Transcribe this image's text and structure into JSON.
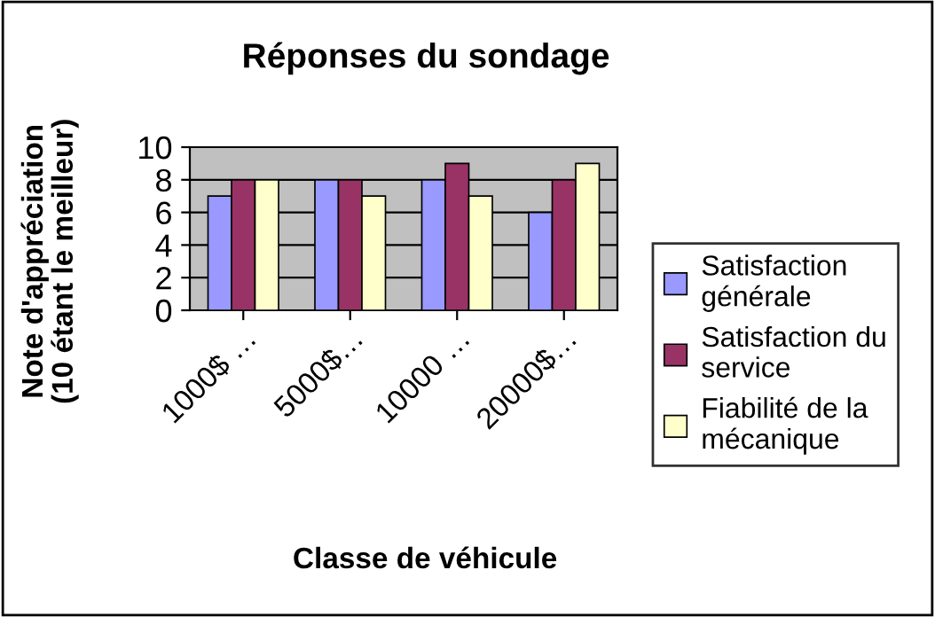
{
  "chart_data": {
    "type": "bar",
    "title": "Réponses du sondage",
    "xlabel": "Classe de véhicule",
    "ylabel": "Note d'appréciation\n(10 étant le meilleur)",
    "categories": [
      "1000$ …",
      "5000$…",
      "10000 …",
      "20000$…"
    ],
    "series": [
      {
        "name": "Satisfaction générale",
        "color": "#9999ff",
        "values": [
          7,
          8,
          8,
          6
        ]
      },
      {
        "name": "Satisfaction du service",
        "color": "#993366",
        "values": [
          8,
          8,
          9,
          8
        ]
      },
      {
        "name": "Fiabilité de la mécanique",
        "color": "#ffffcc",
        "values": [
          8,
          7,
          7,
          9
        ]
      }
    ],
    "ylim": [
      0,
      10
    ],
    "yticks": [
      0,
      2,
      4,
      6,
      8,
      10
    ],
    "grid": "y",
    "legend": "right"
  }
}
